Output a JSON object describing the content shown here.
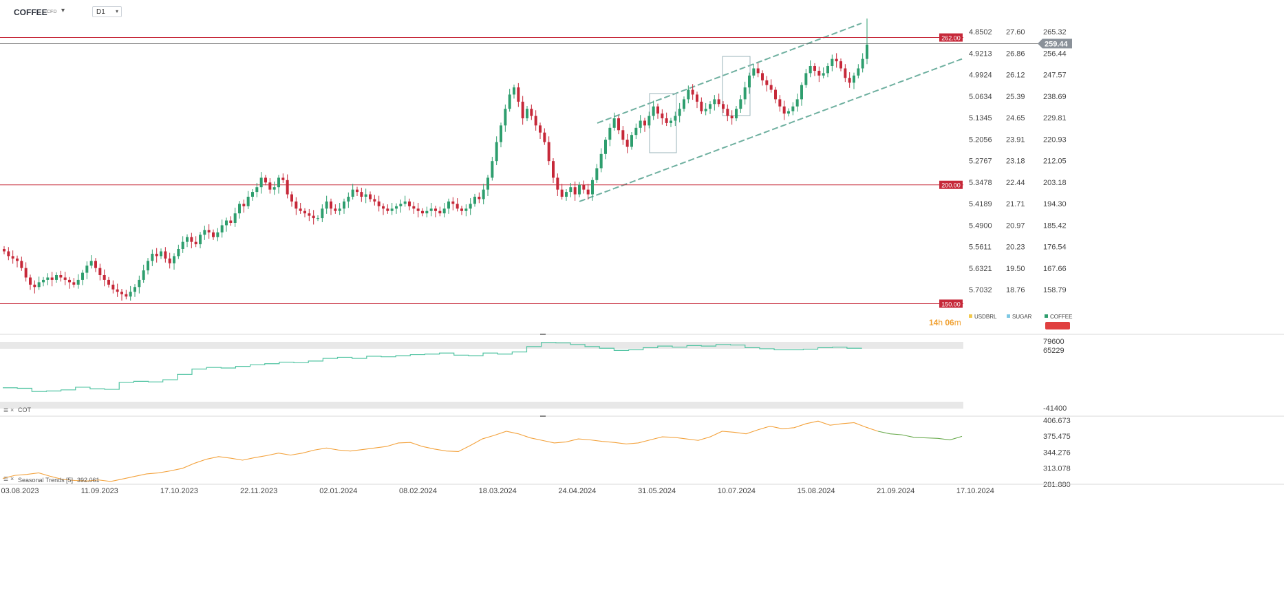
{
  "toolbar": {
    "symbol": "COFFEE",
    "symbol_type": "CFD",
    "timeframe": "D1",
    "caret_icon": "chevron-down-icon"
  },
  "chart_data": {
    "type": "candlestick",
    "instrument": "COFFEE",
    "timeframe": "D1",
    "x_tick_labels": [
      "03.08.2023",
      "11.09.2023",
      "17.10.2023",
      "22.11.2023",
      "02.01.2024",
      "08.02.2024",
      "18.03.2024",
      "24.04.2024",
      "31.05.2024",
      "10.07.2024",
      "15.08.2024",
      "21.09.2024",
      "17.10.2024"
    ],
    "price_axis": {
      "min": 150,
      "max": 270,
      "labels_right": [
        "265.32",
        "256.44",
        "247.57",
        "238.69",
        "229.81",
        "220.93",
        "212.05",
        "203.18",
        "194.30",
        "185.42",
        "176.54",
        "167.66",
        "158.79"
      ],
      "labels_sugar": [
        "27.60",
        "26.86",
        "26.12",
        "25.39",
        "24.65",
        "23.91",
        "23.18",
        "22.44",
        "21.71",
        "20.97",
        "20.23",
        "19.50",
        "18.76"
      ],
      "labels_usdbrl": [
        "4.8502",
        "4.9213",
        "4.9924",
        "5.0634",
        "5.1345",
        "5.2056",
        "5.2767",
        "5.3478",
        "5.4189",
        "5.4900",
        "5.5611",
        "5.6321",
        "5.7032"
      ]
    },
    "last_price": "259.44",
    "horizontal_levels": [
      {
        "label": "262.00",
        "value": 262
      },
      {
        "label": "200.00",
        "value": 200
      },
      {
        "label": "150.00",
        "value": 150
      }
    ],
    "countdown": {
      "hours": "14",
      "h_unit": "h",
      "minutes": "06",
      "m_unit": "m"
    },
    "legend": [
      {
        "name": "USDBRL",
        "color": "#f2c94c"
      },
      {
        "name": "SUGAR",
        "color": "#7ec8e3"
      },
      {
        "name": "COFFEE",
        "color": "#2e9e6e"
      }
    ],
    "up_color": "#2e9e6e",
    "down_color": "#c62839",
    "level_color": "#c62839",
    "channel_color": "#6fb0a0",
    "closes": [
      172,
      170,
      169,
      168,
      165,
      161,
      158,
      157,
      159,
      160,
      161,
      160,
      162,
      161,
      160,
      159,
      158,
      160,
      163,
      166,
      168,
      165,
      162,
      160,
      158,
      156,
      155,
      154,
      153,
      155,
      157,
      160,
      164,
      168,
      171,
      170,
      172,
      169,
      167,
      170,
      173,
      176,
      178,
      176,
      175,
      179,
      181,
      180,
      178,
      180,
      183,
      185,
      184,
      188,
      192,
      191,
      195,
      197,
      199,
      203,
      201,
      198,
      199,
      203,
      202,
      196,
      193,
      190,
      189,
      188,
      187,
      186,
      186,
      190,
      193,
      190,
      189,
      190,
      193,
      195,
      198,
      197,
      195,
      196,
      194,
      193,
      191,
      190,
      189,
      190,
      191,
      192,
      193,
      191,
      190,
      189,
      188,
      189,
      190,
      189,
      188,
      190,
      193,
      192,
      190,
      189,
      190,
      192,
      195,
      194,
      198,
      203,
      210,
      218,
      225,
      232,
      238,
      241,
      235,
      228,
      232,
      229,
      225,
      222,
      218,
      210,
      203,
      198,
      195,
      197,
      199,
      196,
      200,
      198,
      196,
      202,
      207,
      213,
      219,
      224,
      228,
      223,
      219,
      216,
      221,
      224,
      227,
      225,
      229,
      233,
      230,
      228,
      226,
      227,
      229,
      232,
      236,
      240,
      238,
      235,
      231,
      232,
      234,
      236,
      234,
      232,
      229,
      228,
      232,
      236,
      241,
      246,
      249,
      247,
      244,
      242,
      240,
      236,
      233,
      230,
      231,
      233,
      236,
      242,
      247,
      250,
      248,
      246,
      247,
      250,
      253,
      252,
      249,
      245,
      243,
      246,
      249,
      253,
      259
    ]
  },
  "cot_panel": {
    "title": "COT",
    "y_labels": [
      "79600",
      "65229",
      "-41400"
    ],
    "color": "#4fc3a1",
    "values": [
      -5000,
      -6000,
      -12000,
      -11000,
      -9000,
      -4000,
      -7000,
      -8000,
      5000,
      7000,
      6000,
      10000,
      20000,
      30000,
      33000,
      32000,
      35000,
      38000,
      40000,
      43000,
      42000,
      45000,
      50000,
      52000,
      50000,
      54000,
      53000,
      55000,
      57000,
      58000,
      60000,
      56000,
      55000,
      60000,
      58000,
      62000,
      72000,
      79600,
      79000,
      76000,
      72000,
      69000,
      65000,
      66000,
      70000,
      73000,
      71000,
      74000,
      73000,
      76000,
      75000,
      70000,
      68000,
      66000,
      66000,
      67000,
      70000,
      71000,
      69000,
      68000
    ]
  },
  "seasonal_panel": {
    "title": "Seasonal",
    "subtitle": "Trends",
    "period": "[5]",
    "value": "392.061",
    "y_labels": [
      "406.673",
      "375.475",
      "344.276",
      "313.078",
      "281.880"
    ],
    "color": "#f3a23c",
    "forecast_color": "#6aab4e",
    "values": [
      292,
      298,
      300,
      303,
      296,
      290,
      288,
      287,
      289,
      286,
      291,
      296,
      301,
      303,
      307,
      312,
      322,
      330,
      335,
      332,
      328,
      333,
      337,
      342,
      338,
      342,
      348,
      352,
      348,
      346,
      349,
      352,
      355,
      362,
      363,
      355,
      350,
      346,
      345,
      357,
      370,
      377,
      385,
      380,
      372,
      367,
      362,
      364,
      370,
      368,
      365,
      363,
      360,
      362,
      368,
      374,
      373,
      370,
      367,
      374,
      385,
      383,
      380,
      388,
      395,
      390,
      392,
      400,
      405,
      397,
      400,
      402,
      393,
      385,
      380,
      378,
      373,
      372,
      371,
      368,
      375
    ]
  }
}
